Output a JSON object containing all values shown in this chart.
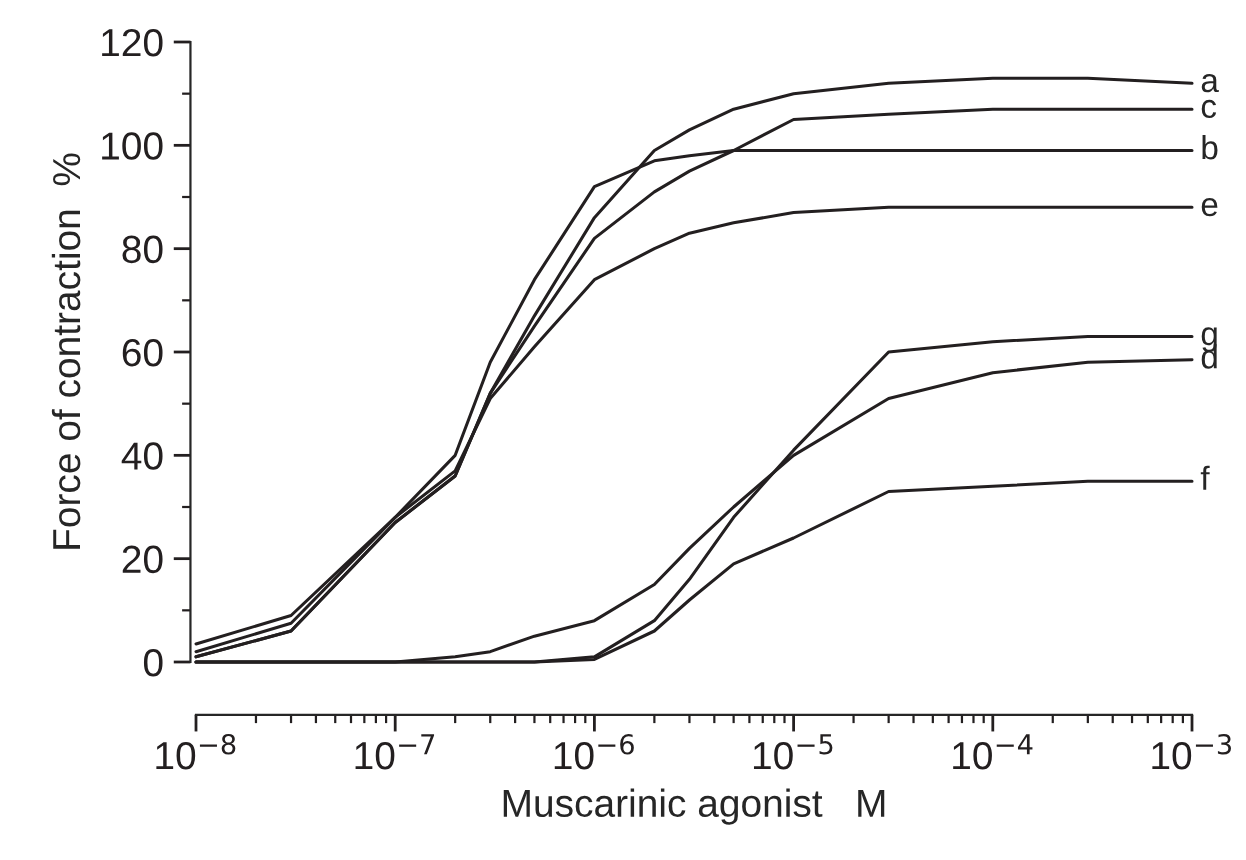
{
  "chart_data": {
    "type": "line",
    "xlabel": "Muscarinic agonist   M",
    "ylabel": "Force of contraction  %",
    "x": [
      1e-08,
      3e-08,
      1e-07,
      2e-07,
      3e-07,
      5e-07,
      1e-06,
      2e-06,
      3e-06,
      5e-06,
      1e-05,
      3e-05,
      0.0001,
      0.0003,
      0.001
    ],
    "series": [
      {
        "name": "a",
        "color": "#231f20",
        "values": [
          1,
          6,
          27,
          36,
          52,
          67,
          86,
          99,
          103,
          107,
          110,
          112,
          113,
          113,
          112
        ]
      },
      {
        "name": "c",
        "color": "#231f20",
        "values": [
          1,
          6,
          27,
          36,
          52,
          65,
          82,
          91,
          95,
          99,
          105,
          106,
          107,
          107,
          107
        ]
      },
      {
        "name": "b",
        "color": "#231f20",
        "values": [
          2,
          7.5,
          28,
          40,
          58,
          74,
          92,
          97,
          98,
          99,
          99,
          99,
          99,
          99,
          99
        ]
      },
      {
        "name": "e",
        "color": "#231f20",
        "values": [
          3.5,
          9,
          28,
          37,
          51,
          61,
          74,
          80,
          83,
          85,
          87,
          88,
          88,
          88,
          88
        ]
      },
      {
        "name": "g",
        "color": "#231f20",
        "values": [
          0,
          0,
          0,
          0,
          0,
          0,
          1,
          8,
          16,
          28,
          41,
          60,
          62,
          63,
          63
        ]
      },
      {
        "name": "d",
        "color": "#231f20",
        "values": [
          0,
          0,
          0,
          1,
          2,
          5,
          8,
          15,
          22,
          30,
          40,
          51,
          56,
          58,
          58.5
        ]
      },
      {
        "name": "f",
        "color": "#231f20",
        "values": [
          0,
          0,
          0,
          0,
          0,
          0,
          0.5,
          6,
          12,
          19,
          24,
          33,
          34,
          35,
          35
        ]
      }
    ],
    "log": "x",
    "xlim": [
      1e-08,
      0.001
    ],
    "xticks": [
      {
        "value": 1e-08,
        "label": "10$^{−8}$"
      },
      {
        "value": 1e-07,
        "label": "10$^{−7}$"
      },
      {
        "value": 1e-06,
        "label": "10$^{−6}$"
      },
      {
        "value": 1e-05,
        "label": "10$^{−5}$"
      },
      {
        "value": 0.0001,
        "label": "10$^{−4}$"
      },
      {
        "value": 0.001,
        "label": "10$^{−3}$"
      }
    ],
    "ylim": [
      0,
      120
    ],
    "yticks": [
      0,
      20,
      40,
      60,
      80,
      100,
      120
    ],
    "grid": false,
    "legend": false,
    "marker": "none",
    "line_style": "solid"
  }
}
